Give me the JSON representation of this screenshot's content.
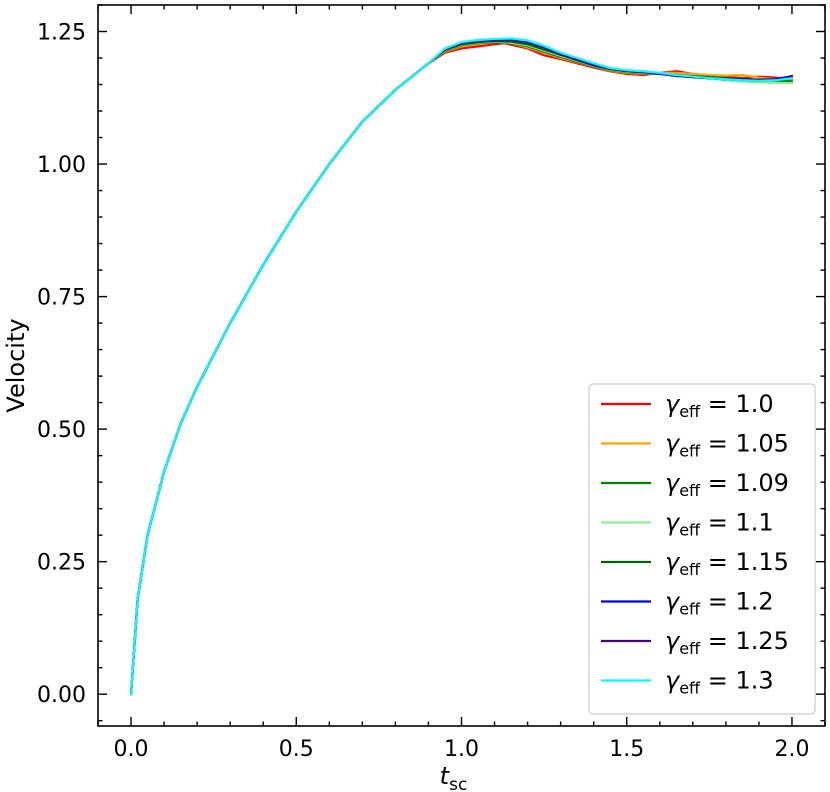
{
  "chart_data": {
    "type": "line",
    "title": "",
    "xlabel": "t",
    "xlabel_sub": "sc",
    "ylabel": "Velocity",
    "xlim": [
      -0.1,
      2.1
    ],
    "ylim": [
      -0.06,
      1.3
    ],
    "xticks": [
      0.0,
      0.5,
      1.0,
      1.5,
      2.0
    ],
    "xtick_labels": [
      "0.0",
      "0.5",
      "1.0",
      "1.5",
      "2.0"
    ],
    "yticks": [
      0.0,
      0.25,
      0.5,
      0.75,
      1.0,
      1.25
    ],
    "ytick_labels": [
      "0.00",
      "0.25",
      "0.50",
      "0.75",
      "1.00",
      "1.25"
    ],
    "grid": false,
    "legend_position": "bottom-right",
    "legend_symbol": "γ",
    "legend_sub": "eff",
    "legend_eq": " = ",
    "series": [
      {
        "name": "1.0",
        "color": "#ff0000",
        "x": [
          0,
          0.02,
          0.05,
          0.1,
          0.15,
          0.2,
          0.3,
          0.4,
          0.5,
          0.6,
          0.7,
          0.8,
          0.9,
          0.95,
          1.0,
          1.05,
          1.1,
          1.13,
          1.2,
          1.25,
          1.3,
          1.35,
          1.4,
          1.45,
          1.5,
          1.55,
          1.6,
          1.65,
          1.7,
          1.75,
          1.8,
          1.85,
          1.9,
          1.95,
          2.0
        ],
        "y": [
          0,
          0.18,
          0.3,
          0.42,
          0.51,
          0.58,
          0.7,
          0.81,
          0.91,
          1.0,
          1.08,
          1.14,
          1.19,
          1.21,
          1.218,
          1.222,
          1.226,
          1.228,
          1.218,
          1.205,
          1.198,
          1.19,
          1.182,
          1.175,
          1.17,
          1.168,
          1.172,
          1.175,
          1.17,
          1.165,
          1.165,
          1.162,
          1.165,
          1.163,
          1.16
        ]
      },
      {
        "name": "1.05",
        "color": "#ffa500",
        "x": [
          0,
          0.02,
          0.05,
          0.1,
          0.15,
          0.2,
          0.3,
          0.4,
          0.5,
          0.6,
          0.7,
          0.8,
          0.9,
          0.95,
          1.0,
          1.05,
          1.1,
          1.15,
          1.2,
          1.25,
          1.3,
          1.35,
          1.4,
          1.45,
          1.5,
          1.55,
          1.6,
          1.65,
          1.7,
          1.75,
          1.8,
          1.85,
          1.9,
          1.95,
          2.0
        ],
        "y": [
          0,
          0.18,
          0.3,
          0.42,
          0.51,
          0.58,
          0.7,
          0.81,
          0.91,
          1.0,
          1.08,
          1.14,
          1.19,
          1.212,
          1.222,
          1.226,
          1.23,
          1.228,
          1.22,
          1.21,
          1.2,
          1.192,
          1.184,
          1.176,
          1.172,
          1.17,
          1.172,
          1.172,
          1.17,
          1.168,
          1.167,
          1.168,
          1.163,
          1.16,
          1.158
        ]
      },
      {
        "name": "1.09",
        "color": "#008000",
        "x": [
          0,
          0.02,
          0.05,
          0.1,
          0.15,
          0.2,
          0.3,
          0.4,
          0.5,
          0.6,
          0.7,
          0.8,
          0.9,
          0.95,
          1.0,
          1.05,
          1.1,
          1.15,
          1.2,
          1.25,
          1.3,
          1.35,
          1.4,
          1.45,
          1.5,
          1.55,
          1.6,
          1.65,
          1.7,
          1.75,
          1.8,
          1.85,
          1.9,
          1.95,
          2.0
        ],
        "y": [
          0,
          0.18,
          0.3,
          0.42,
          0.51,
          0.58,
          0.7,
          0.81,
          0.91,
          1.0,
          1.08,
          1.14,
          1.19,
          1.213,
          1.224,
          1.228,
          1.23,
          1.228,
          1.222,
          1.212,
          1.202,
          1.193,
          1.184,
          1.177,
          1.173,
          1.171,
          1.17,
          1.168,
          1.166,
          1.164,
          1.162,
          1.16,
          1.158,
          1.157,
          1.156
        ]
      },
      {
        "name": "1.1",
        "color": "#90ee90",
        "x": [
          0,
          0.02,
          0.05,
          0.1,
          0.15,
          0.2,
          0.3,
          0.4,
          0.5,
          0.6,
          0.7,
          0.8,
          0.9,
          0.95,
          1.0,
          1.05,
          1.1,
          1.15,
          1.2,
          1.25,
          1.3,
          1.35,
          1.4,
          1.45,
          1.5,
          1.55,
          1.6,
          1.65,
          1.7,
          1.75,
          1.8,
          1.85,
          1.9,
          1.95,
          2.0
        ],
        "y": [
          0,
          0.18,
          0.3,
          0.42,
          0.51,
          0.58,
          0.7,
          0.81,
          0.91,
          1.0,
          1.08,
          1.14,
          1.19,
          1.214,
          1.225,
          1.229,
          1.231,
          1.229,
          1.224,
          1.214,
          1.204,
          1.195,
          1.185,
          1.178,
          1.174,
          1.172,
          1.17,
          1.167,
          1.164,
          1.161,
          1.158,
          1.156,
          1.154,
          1.153,
          1.153
        ]
      },
      {
        "name": "1.15",
        "color": "#006400",
        "x": [
          0,
          0.02,
          0.05,
          0.1,
          0.15,
          0.2,
          0.3,
          0.4,
          0.5,
          0.6,
          0.7,
          0.8,
          0.9,
          0.95,
          1.0,
          1.05,
          1.1,
          1.15,
          1.2,
          1.25,
          1.3,
          1.35,
          1.4,
          1.45,
          1.5,
          1.55,
          1.6,
          1.65,
          1.7,
          1.75,
          1.8,
          1.85,
          1.9,
          1.95,
          2.0
        ],
        "y": [
          0,
          0.18,
          0.3,
          0.42,
          0.51,
          0.58,
          0.7,
          0.81,
          0.91,
          1.0,
          1.08,
          1.14,
          1.19,
          1.215,
          1.226,
          1.23,
          1.232,
          1.231,
          1.226,
          1.216,
          1.206,
          1.196,
          1.186,
          1.179,
          1.175,
          1.173,
          1.171,
          1.168,
          1.165,
          1.162,
          1.16,
          1.158,
          1.157,
          1.158,
          1.162
        ]
      },
      {
        "name": "1.2",
        "color": "#0000ff",
        "x": [
          0,
          0.02,
          0.05,
          0.1,
          0.15,
          0.2,
          0.3,
          0.4,
          0.5,
          0.6,
          0.7,
          0.8,
          0.9,
          0.95,
          1.0,
          1.05,
          1.1,
          1.15,
          1.2,
          1.25,
          1.3,
          1.35,
          1.4,
          1.45,
          1.5,
          1.55,
          1.6,
          1.65,
          1.7,
          1.75,
          1.8,
          1.85,
          1.9,
          1.95,
          2.0
        ],
        "y": [
          0,
          0.18,
          0.3,
          0.42,
          0.51,
          0.58,
          0.7,
          0.81,
          0.91,
          1.0,
          1.08,
          1.14,
          1.19,
          1.216,
          1.228,
          1.232,
          1.234,
          1.234,
          1.23,
          1.22,
          1.207,
          1.197,
          1.187,
          1.18,
          1.176,
          1.173,
          1.17,
          1.166,
          1.164,
          1.162,
          1.161,
          1.16,
          1.159,
          1.16,
          1.166
        ]
      },
      {
        "name": "1.25",
        "color": "#4b0082",
        "x": [
          0,
          0.02,
          0.05,
          0.1,
          0.15,
          0.2,
          0.3,
          0.4,
          0.5,
          0.6,
          0.7,
          0.8,
          0.9,
          0.95,
          1.0,
          1.05,
          1.1,
          1.15,
          1.2,
          1.25,
          1.3,
          1.35,
          1.4,
          1.45,
          1.5,
          1.55,
          1.6,
          1.65,
          1.7,
          1.75,
          1.8,
          1.85,
          1.9,
          1.95,
          2.0
        ],
        "y": [
          0,
          0.18,
          0.3,
          0.42,
          0.51,
          0.58,
          0.7,
          0.81,
          0.91,
          1.0,
          1.08,
          1.14,
          1.19,
          1.216,
          1.228,
          1.233,
          1.235,
          1.235,
          1.231,
          1.221,
          1.208,
          1.198,
          1.188,
          1.18,
          1.176,
          1.174,
          1.171,
          1.167,
          1.164,
          1.162,
          1.16,
          1.159,
          1.158,
          1.159,
          1.164
        ]
      },
      {
        "name": "1.3",
        "color": "#00ffff",
        "x": [
          0,
          0.02,
          0.05,
          0.1,
          0.15,
          0.2,
          0.3,
          0.4,
          0.5,
          0.6,
          0.7,
          0.8,
          0.9,
          0.95,
          1.0,
          1.05,
          1.1,
          1.15,
          1.2,
          1.25,
          1.3,
          1.35,
          1.4,
          1.45,
          1.5,
          1.55,
          1.6,
          1.65,
          1.7,
          1.75,
          1.8,
          1.85,
          1.9,
          1.95,
          2.0
        ],
        "y": [
          0,
          0.18,
          0.3,
          0.42,
          0.51,
          0.58,
          0.7,
          0.81,
          0.91,
          1.0,
          1.08,
          1.14,
          1.19,
          1.218,
          1.23,
          1.234,
          1.236,
          1.237,
          1.233,
          1.223,
          1.21,
          1.2,
          1.19,
          1.181,
          1.177,
          1.175,
          1.172,
          1.168,
          1.165,
          1.162,
          1.16,
          1.158,
          1.157,
          1.158,
          1.162
        ]
      }
    ]
  }
}
